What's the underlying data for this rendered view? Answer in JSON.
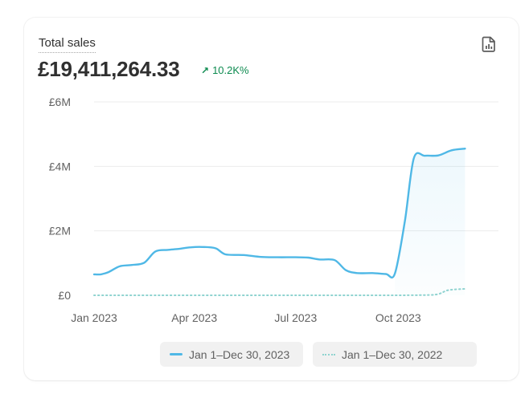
{
  "header": {
    "metric_label": "Total sales",
    "metric_value": "£19,411,264.33",
    "delta_arrow": "↗",
    "delta_value": "10.2K%",
    "export_icon": "file-chart-icon"
  },
  "colors": {
    "current_series": "#4fb8e6",
    "previous_series": "#8fd3d0",
    "delta_positive": "#0c8a4f",
    "grid": "#ebebeb"
  },
  "legend": {
    "current": "Jan 1–Dec 30, 2023",
    "previous": "Jan 1–Dec 30, 2022"
  },
  "chart_data": {
    "type": "line",
    "title": "Total sales",
    "xlabel": "",
    "ylabel": "",
    "ylim": [
      0,
      6000000
    ],
    "yticks": [
      {
        "value": 0,
        "label": "£0"
      },
      {
        "value": 2000000,
        "label": "£2M"
      },
      {
        "value": 4000000,
        "label": "£4M"
      },
      {
        "value": 6000000,
        "label": "£6M"
      }
    ],
    "xticks": [
      {
        "date": "2023-01-01",
        "label": "Jan 2023"
      },
      {
        "date": "2023-04-01",
        "label": "Apr 2023"
      },
      {
        "date": "2023-07-01",
        "label": "Jul 2023"
      },
      {
        "date": "2023-10-01",
        "label": "Oct 2023"
      }
    ],
    "xlim": [
      "2023-01-01",
      "2023-12-30"
    ],
    "grid": true,
    "legend_position": "bottom",
    "series": [
      {
        "name": "Jan 1–Dec 30, 2023",
        "style": "solid",
        "points": [
          [
            "2023-01-01",
            650000
          ],
          [
            "2023-01-07",
            650000
          ],
          [
            "2023-01-14",
            720000
          ],
          [
            "2023-01-24",
            900000
          ],
          [
            "2023-02-04",
            940000
          ],
          [
            "2023-02-15",
            1010000
          ],
          [
            "2023-02-25",
            1360000
          ],
          [
            "2023-03-08",
            1410000
          ],
          [
            "2023-03-18",
            1440000
          ],
          [
            "2023-03-29",
            1490000
          ],
          [
            "2023-04-08",
            1500000
          ],
          [
            "2023-04-20",
            1460000
          ],
          [
            "2023-04-29",
            1270000
          ],
          [
            "2023-05-15",
            1250000
          ],
          [
            "2023-05-31",
            1190000
          ],
          [
            "2023-06-15",
            1180000
          ],
          [
            "2023-07-01",
            1180000
          ],
          [
            "2023-07-12",
            1170000
          ],
          [
            "2023-07-23",
            1110000
          ],
          [
            "2023-08-05",
            1090000
          ],
          [
            "2023-08-15",
            780000
          ],
          [
            "2023-08-25",
            690000
          ],
          [
            "2023-09-08",
            690000
          ],
          [
            "2023-09-20",
            660000
          ],
          [
            "2023-09-28",
            670000
          ],
          [
            "2023-10-07",
            2300000
          ],
          [
            "2023-10-15",
            4250000
          ],
          [
            "2023-10-25",
            4330000
          ],
          [
            "2023-11-06",
            4340000
          ],
          [
            "2023-11-18",
            4500000
          ],
          [
            "2023-11-30",
            4550000
          ]
        ]
      },
      {
        "name": "Jan 1–Dec 30, 2022",
        "style": "dotted",
        "points": [
          [
            "2023-01-01",
            0
          ],
          [
            "2023-03-01",
            0
          ],
          [
            "2023-05-01",
            0
          ],
          [
            "2023-07-01",
            0
          ],
          [
            "2023-09-01",
            0
          ],
          [
            "2023-10-20",
            5000
          ],
          [
            "2023-11-05",
            30000
          ],
          [
            "2023-11-15",
            160000
          ],
          [
            "2023-11-30",
            200000
          ]
        ]
      }
    ]
  }
}
